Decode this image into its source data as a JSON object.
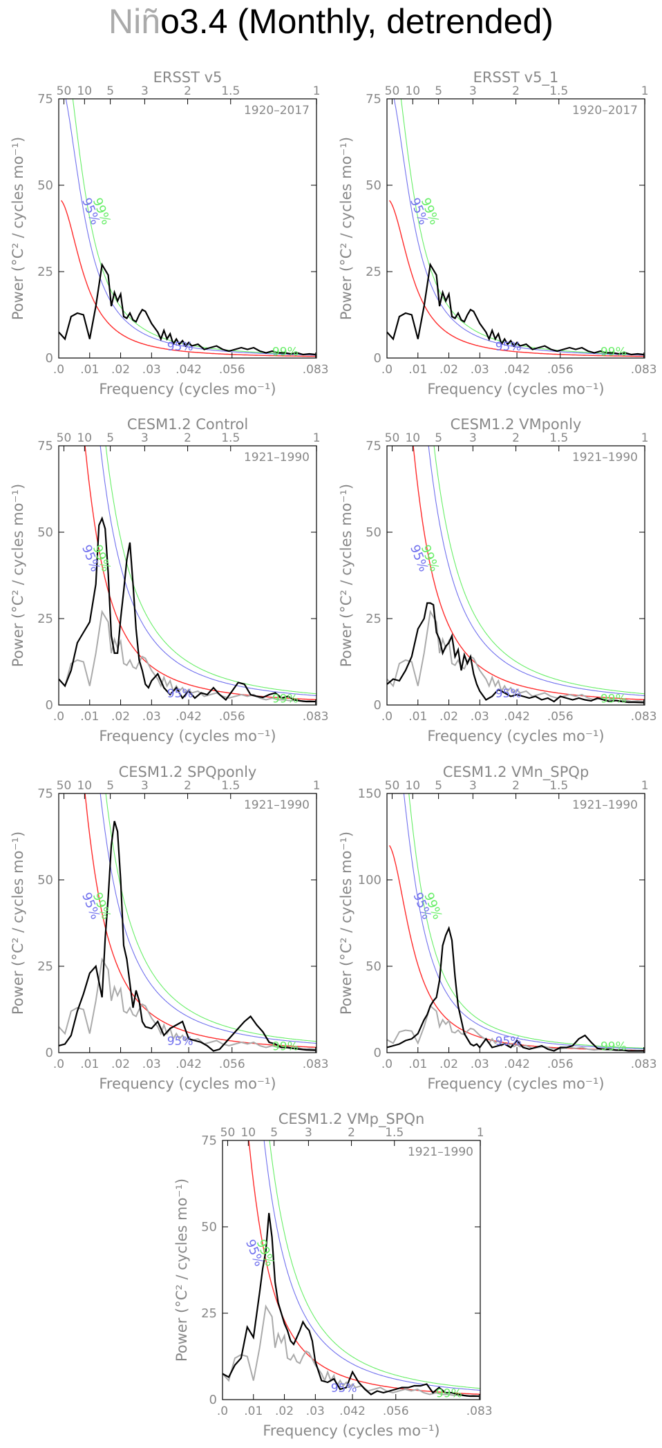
{
  "figure": {
    "title_part1": "Niñ",
    "title_part2": "o3.4 (Monthly, detrended)"
  },
  "colors": {
    "observed": "#000000",
    "reference_obs": "#aaaaaa",
    "red_noise": "#ff2a2a",
    "conf_95": "#7070ee",
    "conf_99": "#66ee66",
    "axis_text": "#888888"
  },
  "axes_common": {
    "xlabel": "Frequency (cycles mo⁻¹)",
    "ylabel": "Power (°C² / cycles mo⁻¹)",
    "x_tick_labels": [
      ".0",
      ".01",
      ".02",
      ".03",
      ".042",
      ".056",
      ".083"
    ],
    "x_tick_values": [
      0.0,
      0.01,
      0.02,
      0.03,
      0.042,
      0.056,
      0.083
    ],
    "period_tick_labels": [
      "50",
      "10",
      "5",
      "3",
      "2",
      "1.5",
      "1"
    ],
    "period_tick_values": [
      50,
      10,
      5,
      3,
      2,
      1.5,
      1
    ],
    "conf_label_95": "95%",
    "conf_label_99": "99%",
    "xlim": [
      0,
      0.0833
    ]
  },
  "chart_data": [
    {
      "type": "line",
      "title": "ERSST v5",
      "period": "1920–2017",
      "ylim": [
        0,
        75
      ],
      "y_ticks": [
        0,
        25,
        50,
        75
      ],
      "show_reference": false,
      "rednoise_amplitude": 46,
      "series": [
        {
          "x": [
            0.0,
            0.002,
            0.004,
            0.006,
            0.008,
            0.01,
            0.012,
            0.014,
            0.016,
            0.017,
            0.018,
            0.019,
            0.02,
            0.021,
            0.022,
            0.023,
            0.024,
            0.025,
            0.026,
            0.027,
            0.028,
            0.03,
            0.032,
            0.033,
            0.034,
            0.035,
            0.036,
            0.037,
            0.038,
            0.039,
            0.04,
            0.041,
            0.042,
            0.043,
            0.045,
            0.047,
            0.049,
            0.051,
            0.053,
            0.055,
            0.057,
            0.059,
            0.061,
            0.063,
            0.065,
            0.067,
            0.069,
            0.071,
            0.073,
            0.075,
            0.077,
            0.079,
            0.081,
            0.083
          ],
          "y": [
            7.5,
            5.5,
            12,
            13,
            12.5,
            5.5,
            15,
            27,
            24,
            15,
            19,
            16.5,
            18.5,
            12,
            11.5,
            13,
            11,
            10.5,
            12.5,
            14,
            13.5,
            10,
            7.5,
            5.5,
            8,
            5.5,
            7,
            4,
            5.5,
            4,
            5,
            3.5,
            4.5,
            3.5,
            4,
            2.5,
            3,
            3.5,
            2.5,
            2,
            2.5,
            3,
            2.5,
            3,
            2,
            1.5,
            2,
            1.5,
            1.5,
            1.2,
            1.5,
            1,
            1.2,
            1
          ]
        }
      ]
    },
    {
      "type": "line",
      "title": "ERSST v5_1",
      "period": "1920–2017",
      "ylim": [
        0,
        75
      ],
      "y_ticks": [
        0,
        25,
        50,
        75
      ],
      "show_reference": false,
      "rednoise_amplitude": 46,
      "series": [
        {
          "x": [
            0.0,
            0.002,
            0.004,
            0.006,
            0.008,
            0.01,
            0.012,
            0.014,
            0.016,
            0.017,
            0.018,
            0.019,
            0.02,
            0.021,
            0.022,
            0.023,
            0.024,
            0.025,
            0.026,
            0.027,
            0.028,
            0.03,
            0.032,
            0.033,
            0.034,
            0.035,
            0.036,
            0.037,
            0.038,
            0.039,
            0.04,
            0.041,
            0.042,
            0.043,
            0.045,
            0.047,
            0.049,
            0.051,
            0.053,
            0.055,
            0.057,
            0.059,
            0.061,
            0.063,
            0.065,
            0.067,
            0.069,
            0.071,
            0.073,
            0.075,
            0.077,
            0.079,
            0.081,
            0.083
          ],
          "y": [
            7.5,
            5.5,
            12,
            13,
            12.5,
            5.5,
            15,
            27,
            24,
            15,
            19,
            16.5,
            18.5,
            12,
            11.5,
            13,
            11,
            10.5,
            12.5,
            14,
            13.5,
            10,
            7.5,
            5.5,
            8,
            5.5,
            7,
            4,
            5.5,
            4,
            5,
            3.5,
            4.5,
            3.5,
            4,
            2.5,
            3,
            3.5,
            2.5,
            2,
            2.5,
            3,
            2.5,
            3,
            2,
            1.5,
            2,
            1.5,
            1.5,
            1.2,
            1.5,
            1,
            1.2,
            1
          ]
        }
      ]
    },
    {
      "type": "line",
      "title": "CESM1.2 Control",
      "period": "1921–1990",
      "ylim": [
        0,
        75
      ],
      "y_ticks": [
        0,
        25,
        50,
        75
      ],
      "show_reference": true,
      "rednoise_amplitude": 150,
      "series": [
        {
          "x": [
            0.0,
            0.002,
            0.004,
            0.006,
            0.008,
            0.01,
            0.012,
            0.013,
            0.014,
            0.015,
            0.016,
            0.017,
            0.018,
            0.019,
            0.02,
            0.021,
            0.022,
            0.023,
            0.024,
            0.025,
            0.026,
            0.027,
            0.028,
            0.029,
            0.03,
            0.032,
            0.034,
            0.036,
            0.038,
            0.04,
            0.042,
            0.044,
            0.046,
            0.048,
            0.05,
            0.052,
            0.054,
            0.056,
            0.058,
            0.06,
            0.062,
            0.064,
            0.066,
            0.068,
            0.07,
            0.072,
            0.074,
            0.076,
            0.078,
            0.08,
            0.083
          ],
          "y": [
            7.5,
            5.5,
            10,
            18,
            21,
            24,
            35,
            52,
            54,
            51,
            38,
            20,
            15,
            15,
            25,
            33,
            42,
            47,
            35,
            22,
            13,
            10,
            6,
            5,
            7,
            9,
            5,
            3,
            5,
            2,
            4,
            2,
            3.5,
            3,
            5,
            3,
            1.5,
            4,
            6.5,
            6,
            3,
            2.5,
            2.2,
            3,
            3.5,
            2,
            2.5,
            1.5,
            1.2,
            1,
            1
          ]
        }
      ]
    },
    {
      "type": "line",
      "title": "CESM1.2 VMponly",
      "period": "1921–1990",
      "ylim": [
        0,
        75
      ],
      "y_ticks": [
        0,
        25,
        50,
        75
      ],
      "show_reference": true,
      "rednoise_amplitude": 150,
      "series": [
        {
          "x": [
            0.0,
            0.002,
            0.004,
            0.006,
            0.008,
            0.01,
            0.012,
            0.013,
            0.014,
            0.015,
            0.016,
            0.017,
            0.018,
            0.019,
            0.02,
            0.021,
            0.022,
            0.023,
            0.024,
            0.025,
            0.026,
            0.027,
            0.028,
            0.029,
            0.03,
            0.032,
            0.034,
            0.036,
            0.038,
            0.04,
            0.042,
            0.044,
            0.046,
            0.048,
            0.05,
            0.052,
            0.054,
            0.056,
            0.058,
            0.06,
            0.062,
            0.064,
            0.066,
            0.068,
            0.07,
            0.072,
            0.074,
            0.076,
            0.078,
            0.08,
            0.083
          ],
          "y": [
            6,
            7.5,
            7,
            10,
            14,
            22,
            25,
            29.5,
            29.5,
            29,
            21,
            19,
            15,
            17,
            18,
            20,
            14,
            16,
            10,
            14.5,
            12,
            14,
            9,
            6,
            4,
            1.5,
            2.5,
            4.5,
            3.5,
            2.5,
            3,
            2.5,
            2,
            2.5,
            1.5,
            2,
            1,
            2.5,
            2,
            1.5,
            2,
            1.5,
            1.2,
            2,
            1.5,
            1,
            1.3,
            1,
            0.8,
            0.8,
            0.7
          ]
        }
      ]
    },
    {
      "type": "line",
      "title": "CESM1.2 SPQponly",
      "period": "1921–1990",
      "ylim": [
        0,
        75
      ],
      "y_ticks": [
        0,
        25,
        50,
        75
      ],
      "show_reference": true,
      "rednoise_amplitude": 150,
      "series": [
        {
          "x": [
            0.0,
            0.002,
            0.004,
            0.006,
            0.008,
            0.01,
            0.012,
            0.014,
            0.015,
            0.016,
            0.017,
            0.018,
            0.019,
            0.02,
            0.021,
            0.022,
            0.023,
            0.024,
            0.025,
            0.026,
            0.027,
            0.028,
            0.03,
            0.032,
            0.034,
            0.036,
            0.038,
            0.04,
            0.042,
            0.044,
            0.046,
            0.048,
            0.05,
            0.052,
            0.054,
            0.056,
            0.058,
            0.06,
            0.062,
            0.064,
            0.066,
            0.068,
            0.07,
            0.072,
            0.074,
            0.076,
            0.078,
            0.08,
            0.083
          ],
          "y": [
            2,
            2.5,
            5,
            12,
            17,
            23,
            25,
            16,
            33,
            45,
            60,
            67,
            64,
            50,
            31,
            27,
            20,
            13,
            18,
            15,
            9,
            7.5,
            7,
            9,
            5,
            7,
            8,
            9,
            4,
            3.5,
            3,
            2,
            0.5,
            1,
            3,
            5,
            7,
            9,
            10.5,
            8,
            6,
            3,
            2.5,
            1.5,
            1.5,
            1.2,
            1,
            0.8,
            0.7
          ]
        }
      ]
    },
    {
      "type": "line",
      "title": "CESM1.2 VMn_SPQp",
      "period": "1921–1990",
      "ylim": [
        0,
        150
      ],
      "y_ticks": [
        0,
        50,
        100,
        150
      ],
      "show_reference": true,
      "rednoise_amplitude": 121,
      "series": [
        {
          "x": [
            0.0,
            0.002,
            0.004,
            0.006,
            0.008,
            0.01,
            0.012,
            0.013,
            0.014,
            0.015,
            0.016,
            0.017,
            0.018,
            0.019,
            0.02,
            0.021,
            0.022,
            0.023,
            0.024,
            0.025,
            0.026,
            0.027,
            0.028,
            0.029,
            0.03,
            0.032,
            0.034,
            0.036,
            0.038,
            0.04,
            0.042,
            0.044,
            0.046,
            0.048,
            0.05,
            0.052,
            0.054,
            0.056,
            0.058,
            0.06,
            0.062,
            0.064,
            0.066,
            0.068,
            0.07,
            0.072,
            0.074,
            0.076,
            0.078,
            0.08,
            0.083
          ],
          "y": [
            3,
            4,
            5,
            7,
            8,
            11,
            19,
            22,
            27,
            30,
            32,
            42,
            62,
            68,
            72,
            65,
            44,
            27,
            19,
            11,
            8,
            5,
            4,
            5,
            3,
            8,
            3,
            4,
            5,
            3,
            7,
            3,
            2,
            3,
            4,
            2,
            1,
            3,
            3,
            4,
            8,
            10,
            6,
            2.5,
            2,
            2,
            1.5,
            1.5,
            1,
            1,
            1
          ]
        }
      ]
    },
    {
      "type": "line",
      "title": "CESM1.2 VMp_SPQn",
      "period": "1921–1990",
      "ylim": [
        0,
        75
      ],
      "y_ticks": [
        0,
        25,
        50,
        75
      ],
      "show_reference": true,
      "rednoise_amplitude": 150,
      "series": [
        {
          "x": [
            0.0,
            0.002,
            0.004,
            0.006,
            0.008,
            0.01,
            0.012,
            0.013,
            0.014,
            0.015,
            0.016,
            0.017,
            0.018,
            0.019,
            0.02,
            0.021,
            0.022,
            0.023,
            0.024,
            0.025,
            0.026,
            0.027,
            0.028,
            0.029,
            0.03,
            0.032,
            0.034,
            0.036,
            0.038,
            0.04,
            0.042,
            0.044,
            0.046,
            0.048,
            0.05,
            0.052,
            0.054,
            0.056,
            0.058,
            0.06,
            0.062,
            0.064,
            0.066,
            0.068,
            0.07,
            0.072,
            0.074,
            0.076,
            0.078,
            0.08,
            0.083
          ],
          "y": [
            7.5,
            6.5,
            10,
            12,
            21,
            18,
            31,
            38,
            43,
            54,
            47,
            34,
            28,
            25,
            22,
            20,
            17,
            16,
            18,
            20,
            22.5,
            21,
            20,
            17,
            11,
            5.5,
            5,
            6,
            3,
            3.5,
            8,
            5,
            3,
            1.5,
            2.5,
            2,
            2.5,
            3,
            3.5,
            3.5,
            4,
            4,
            4.5,
            2,
            3.5,
            2,
            2,
            1.5,
            1.2,
            1,
            1
          ]
        }
      ]
    },
    {
      "type": "line",
      "reference_series_for": "model panels (grey line)",
      "series": [
        {
          "x": [
            0.0,
            0.002,
            0.004,
            0.006,
            0.008,
            0.01,
            0.012,
            0.014,
            0.016,
            0.017,
            0.018,
            0.019,
            0.02,
            0.021,
            0.022,
            0.023,
            0.024,
            0.025,
            0.026,
            0.027,
            0.028,
            0.03,
            0.032,
            0.033,
            0.034,
            0.035,
            0.036,
            0.037,
            0.038,
            0.039,
            0.04,
            0.041,
            0.042,
            0.043,
            0.045,
            0.047,
            0.049,
            0.051,
            0.053,
            0.055,
            0.057,
            0.059,
            0.061,
            0.063,
            0.065,
            0.067,
            0.069,
            0.071,
            0.073,
            0.075,
            0.077,
            0.079,
            0.081,
            0.083
          ],
          "y": [
            7.5,
            5.5,
            12,
            13,
            12.5,
            5.5,
            15,
            27,
            24,
            15,
            19,
            16.5,
            18.5,
            12,
            11.5,
            13,
            11,
            10.5,
            12.5,
            14,
            13.5,
            10,
            7.5,
            5.5,
            8,
            5.5,
            7,
            4,
            5.5,
            4,
            5,
            3.5,
            4.5,
            3.5,
            4,
            2.5,
            3,
            3.5,
            2.5,
            2,
            2.5,
            3,
            2.5,
            3,
            2,
            1.5,
            2,
            1.5,
            1.5,
            1.2,
            1.5,
            1,
            1.2,
            1
          ]
        }
      ]
    }
  ]
}
